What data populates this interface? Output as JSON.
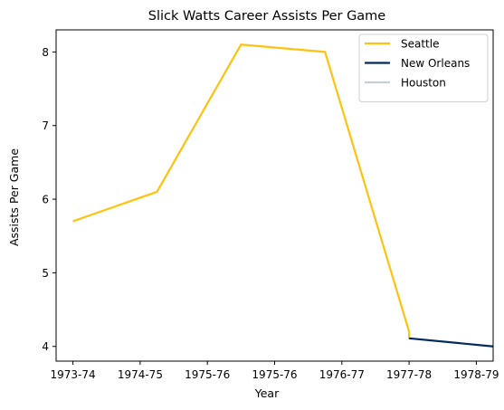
{
  "chart_data": {
    "type": "line",
    "title": "Slick Watts Career Assists Per Game",
    "xlabel": "Year",
    "ylabel": "Assists Per Game",
    "x_ticks": [
      "1973-74",
      "1974-75",
      "1975-76",
      "1975-76",
      "1976-77",
      "1977-78",
      "1978-79"
    ],
    "xlim": [
      -0.25,
      6.25
    ],
    "ylim": [
      3.8,
      8.3
    ],
    "y_ticks": [
      4,
      5,
      6,
      7,
      8
    ],
    "legend_position": "top-right",
    "series": [
      {
        "name": "Seattle",
        "color": "#FFC20E",
        "points": [
          {
            "x": 0,
            "y": 5.7
          },
          {
            "x": 1.25,
            "y": 6.1
          },
          {
            "x": 2.5,
            "y": 8.1
          },
          {
            "x": 3.75,
            "y": 8.0
          },
          {
            "x": 5.0,
            "y": 4.2
          },
          {
            "x": 5.0,
            "y": 4.1
          }
        ]
      },
      {
        "name": "New Orleans",
        "color": "#002B5C",
        "points": [
          {
            "x": 5.0,
            "y": 4.11
          },
          {
            "x": 6.25,
            "y": 4.0
          }
        ]
      },
      {
        "name": "Houston",
        "color": "#C4CED4",
        "points": []
      }
    ]
  }
}
